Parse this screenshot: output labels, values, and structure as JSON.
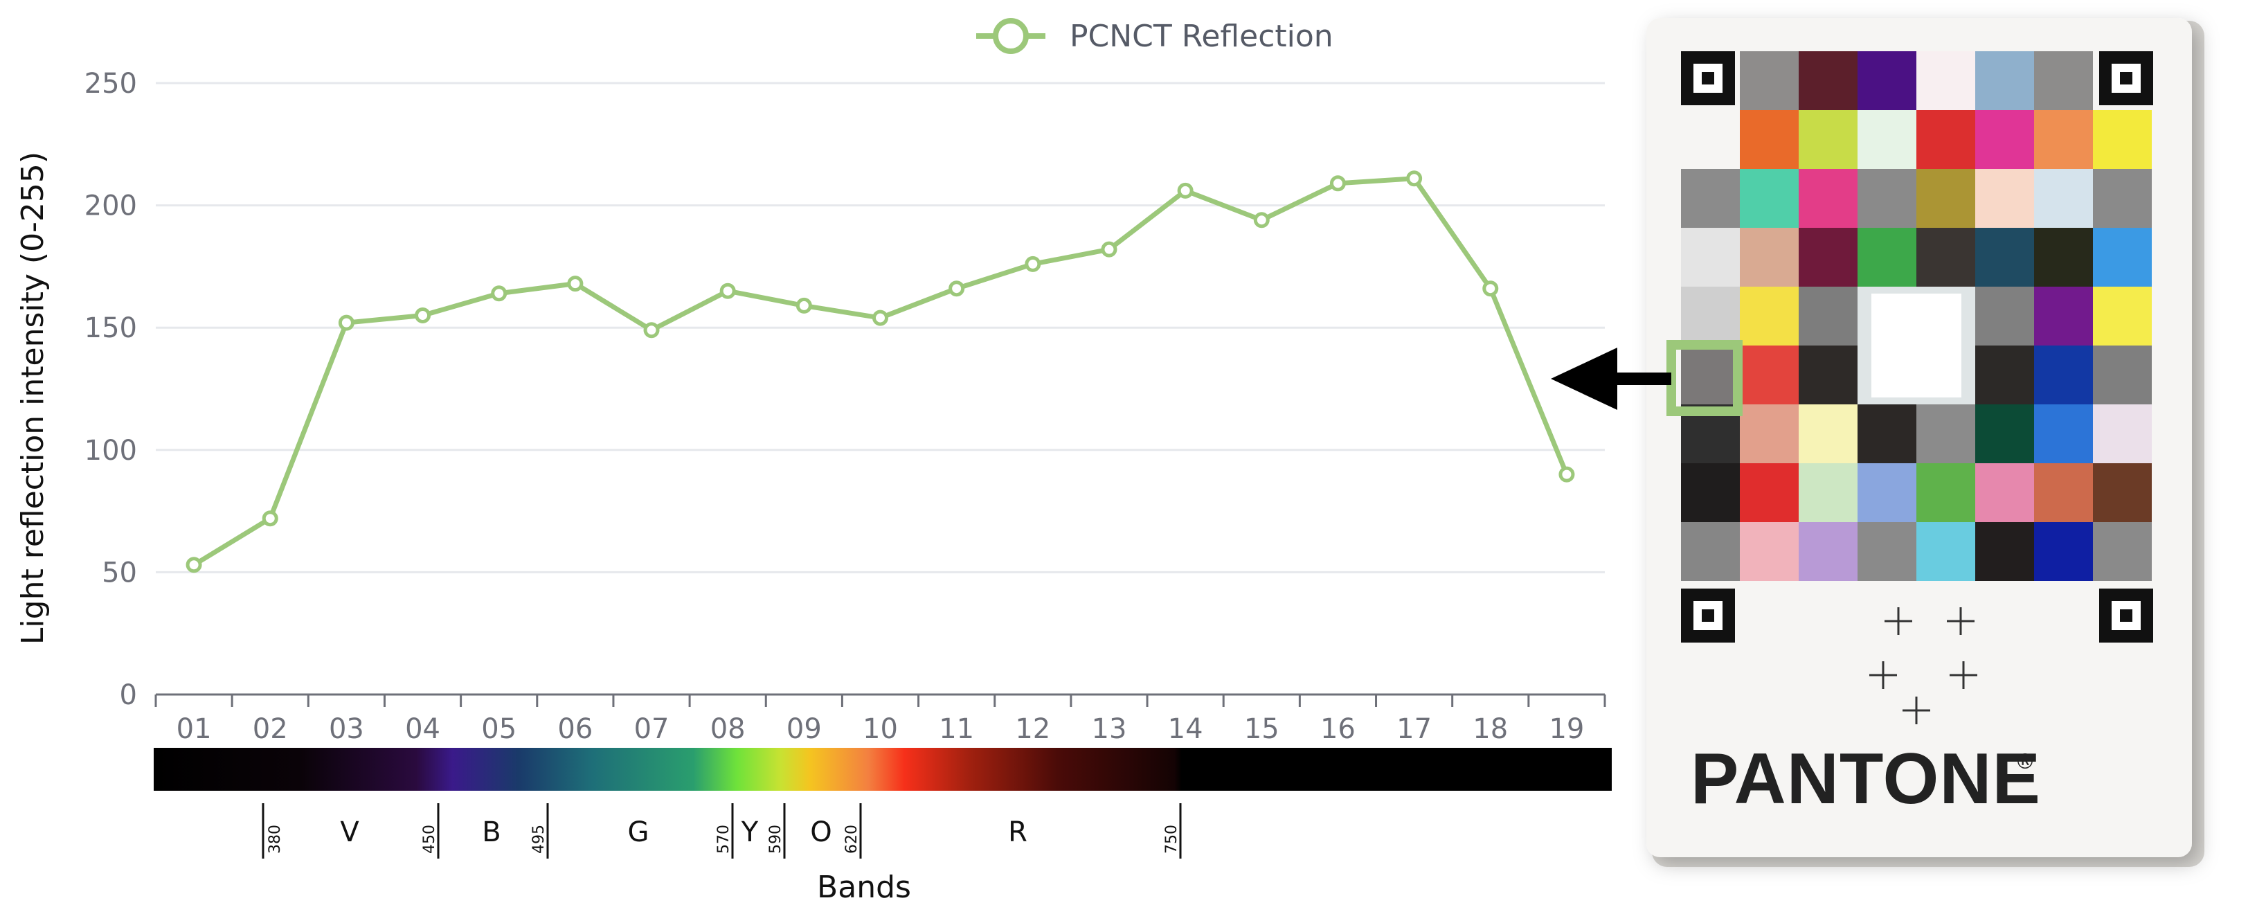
{
  "chart_data": {
    "type": "line",
    "title": "",
    "xlabel": "Bands",
    "ylabel": "Light reflection intensity (0-255)",
    "categories": [
      "01",
      "02",
      "03",
      "04",
      "05",
      "06",
      "07",
      "08",
      "09",
      "10",
      "11",
      "12",
      "13",
      "14",
      "15",
      "16",
      "17",
      "18",
      "19"
    ],
    "series": [
      {
        "name": "PCNCT Reflection",
        "values": [
          53,
          72,
          152,
          155,
          164,
          168,
          149,
          165,
          159,
          154,
          166,
          176,
          182,
          206,
          194,
          209,
          211,
          166,
          90
        ]
      }
    ],
    "ylim": [
      0,
      250
    ],
    "yticks": [
      0,
      50,
      100,
      150,
      200,
      250
    ],
    "grid": true,
    "legend": "top-center",
    "series_color": "#9cc87a",
    "spectrum": {
      "letters": [
        "V",
        "B",
        "G",
        "Y",
        "O",
        "R"
      ],
      "wavelengths": [
        "380",
        "450",
        "495",
        "570",
        "590",
        "620",
        "750"
      ]
    }
  },
  "chart_card": {
    "brand": "PANTONE",
    "registered_mark": "®",
    "highlight_color": "#9cc87a",
    "swatches": [
      [
        "#8e8c8b",
        "#5c1f2b",
        "#4b1184",
        "#f8eff1",
        "#8fb0cc",
        "#8d8c8b"
      ],
      [
        "#e96a2a",
        "#c8dc48",
        "#e6f3e6",
        "#dc2f2f",
        "#e03596",
        "#ef8f52",
        "#f3ea3c"
      ],
      [
        "#8b8b8b",
        "#50cfa9",
        "#e33d88",
        "#8a8a8a",
        "#ab9534",
        "#f8d8c8",
        "#d5e3ec",
        "#8a8a8a"
      ],
      [
        "#e4e4e4",
        "#d9aa92",
        "#6f1a3b",
        "#3da84a",
        "#3a3532",
        "#1f4b62",
        "#27291b",
        "#3b9ae4"
      ],
      [
        "#cfcfcf",
        "#f4e046",
        "#7d7d7d",
        "#ffffff",
        "#ffffff",
        "#808080",
        "#721a8d",
        "#f5ec4c"
      ],
      [
        "#7b7878",
        "#e3443d",
        "#2e2a28",
        "#f1f1f1",
        "#f1f1f1",
        "#2c2927",
        "#1238a4",
        "#7f7f7f"
      ],
      [
        "#2f2f2f",
        "#e2a08c",
        "#f7f3b6",
        "#2c2826",
        "#8b8b8b",
        "#0c4b36",
        "#2c74d7",
        "#ebe0ea"
      ],
      [
        "#1f1d1d",
        "#e02d2d",
        "#cde7c3",
        "#8aa6de",
        "#5fb24b",
        "#e688ad",
        "#cd6a4c",
        "#6b3b26"
      ],
      [
        "#868686",
        "#f1b3bb",
        "#b89ad6",
        "#8a8a8a",
        "#69cce0",
        "#221e1e",
        "#0f1fa3",
        "#8a8a8a"
      ]
    ]
  }
}
